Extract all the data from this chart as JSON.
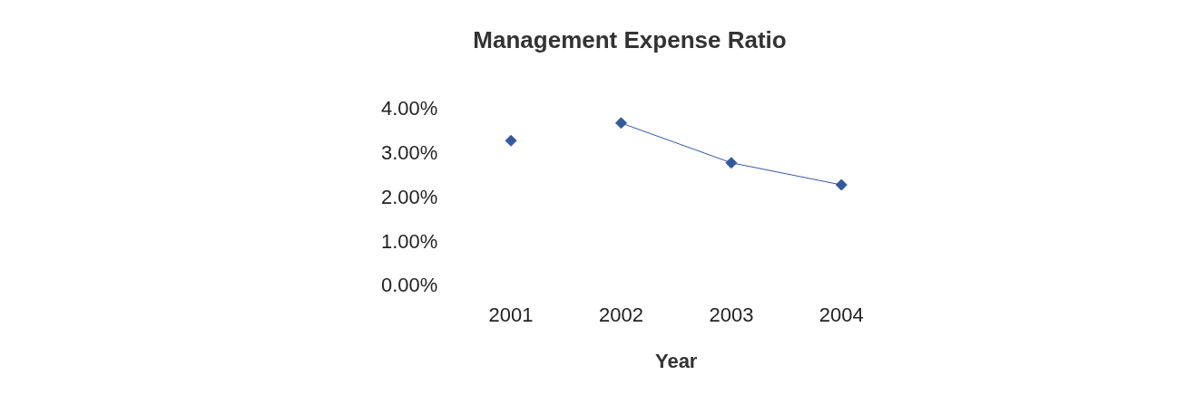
{
  "chart_data": {
    "type": "line",
    "title": "Management Expense Ratio",
    "xlabel": "Year",
    "categories": [
      "2001",
      "2002",
      "2003",
      "2004"
    ],
    "series": [
      {
        "type": "scatter",
        "color": "#34589e",
        "values": [
          3.3,
          null,
          null,
          null
        ]
      },
      {
        "color": "#34589e",
        "values": [
          null,
          3.7,
          2.8,
          2.3
        ]
      }
    ],
    "ylim": [
      0,
      4
    ],
    "yticks": [
      {
        "value": 0,
        "label": "0.00%"
      },
      {
        "value": 1,
        "label": "1.00%"
      },
      {
        "value": 2,
        "label": "2.00%"
      },
      {
        "value": 3,
        "label": "3.00%"
      },
      {
        "value": 4,
        "label": "4.00%"
      }
    ],
    "grid": false,
    "legend": false,
    "marker": "diamond",
    "line_style": "solid"
  }
}
